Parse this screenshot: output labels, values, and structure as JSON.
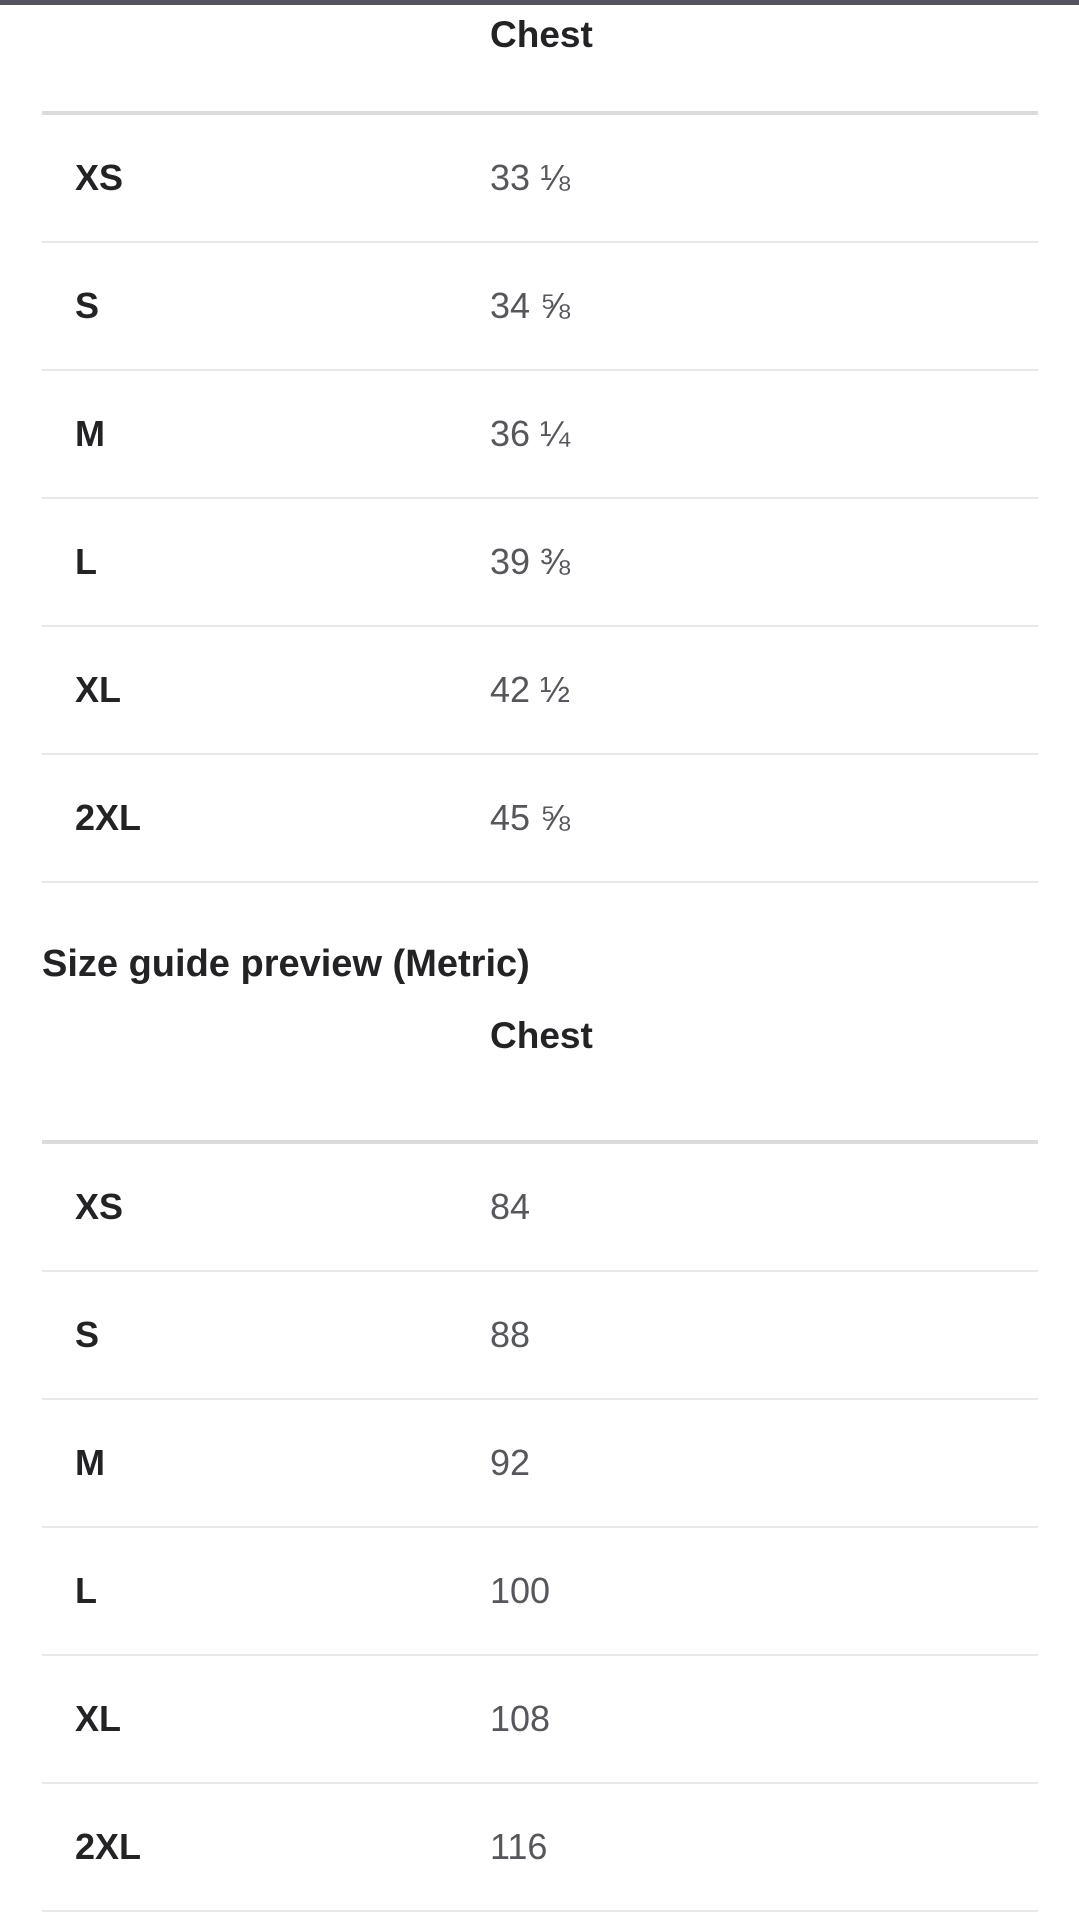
{
  "top_bar": {
    "color": "#54545f"
  },
  "imperial_table": {
    "column_header": "Chest",
    "rows": [
      {
        "size": "XS",
        "chest": "33 ⅛"
      },
      {
        "size": "S",
        "chest": "34 ⅝"
      },
      {
        "size": "M",
        "chest": "36 ¼"
      },
      {
        "size": "L",
        "chest": "39 ⅜"
      },
      {
        "size": "XL",
        "chest": "42 ½"
      },
      {
        "size": "2XL",
        "chest": "45 ⅝"
      }
    ]
  },
  "metric_section": {
    "heading": "Size guide preview (Metric)",
    "column_header": "Chest",
    "rows": [
      {
        "size": "XS",
        "chest": "84"
      },
      {
        "size": "S",
        "chest": "88"
      },
      {
        "size": "M",
        "chest": "92"
      },
      {
        "size": "L",
        "chest": "100"
      },
      {
        "size": "XL",
        "chest": "108"
      },
      {
        "size": "2XL",
        "chest": "116"
      }
    ]
  },
  "colors": {
    "heading_text": "#232326",
    "value_text": "#55575c",
    "header_divider": "#dbdbdb",
    "row_divider": "#e8e8e8",
    "top_bar": "#54545f"
  }
}
